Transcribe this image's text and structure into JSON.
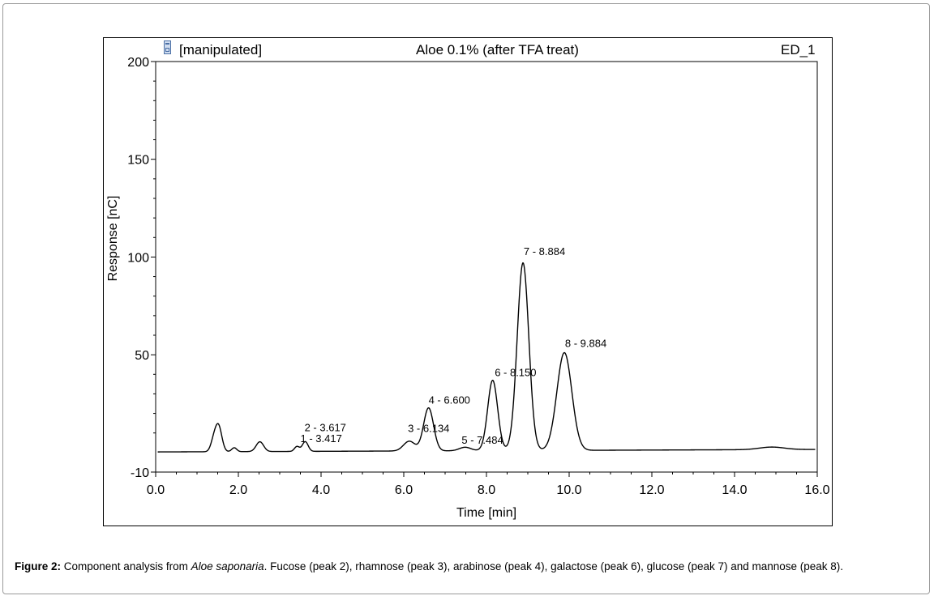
{
  "header": {
    "left_label": "[manipulated]",
    "center_title": "Aloe 0.1% (after TFA treat)",
    "right_label": "ED_1",
    "icon": "document-icon"
  },
  "caption": {
    "figure_label": "Figure 2:",
    "text_before_species": " Component analysis from ",
    "species": "Aloe saponaria",
    "text_after_species": ". Fucose (peak 2), rhamnose (peak 3), arabinose (peak 4), galactose (peak 6), glucose (peak 7) and mannose (peak 8)."
  },
  "chart_data": {
    "type": "line",
    "title": "Aloe 0.1% (after TFA treat)",
    "xlabel": "Time [min]",
    "ylabel": "Response [nC]",
    "xlim": [
      0,
      16
    ],
    "ylim": [
      -10,
      200
    ],
    "x_ticks": [
      "0.0",
      "2.0",
      "4.0",
      "6.0",
      "8.0",
      "10.0",
      "12.0",
      "14.0",
      "16.0"
    ],
    "y_ticks": [
      {
        "value": 200,
        "label": "200"
      },
      {
        "value": 150,
        "label": "150"
      },
      {
        "value": 100,
        "label": "100"
      },
      {
        "value": 50,
        "label": "50"
      },
      {
        "value": -10,
        "label": "-10"
      }
    ],
    "color": "#000000",
    "baseline": 0.3,
    "trace_start": 0.05,
    "trace_end": 15.95,
    "peaks": [
      {
        "rt": 1.4,
        "h": 5,
        "w": 0.07
      },
      {
        "rt": 1.52,
        "h": 13,
        "w": 0.08
      },
      {
        "rt": 1.9,
        "h": 2,
        "w": 0.06
      },
      {
        "rt": 2.52,
        "h": 5,
        "w": 0.09
      },
      {
        "rt": 3.417,
        "h": 2.5,
        "w": 0.06
      },
      {
        "rt": 3.617,
        "h": 5,
        "w": 0.07
      },
      {
        "rt": 6.134,
        "h": 5,
        "w": 0.14
      },
      {
        "rt": 6.6,
        "h": 22,
        "w": 0.12
      },
      {
        "rt": 7.484,
        "h": 1.8,
        "w": 0.14
      },
      {
        "rt": 8.15,
        "h": 36,
        "w": 0.12
      },
      {
        "rt": 8.884,
        "h": 96,
        "w": 0.14
      },
      {
        "rt": 9.884,
        "h": 50,
        "w": 0.18
      },
      {
        "rt": 14.9,
        "h": 1.3,
        "w": 0.3
      }
    ],
    "annotations": [
      {
        "text": "2 - 3.617",
        "x": 3.6,
        "y": 11
      },
      {
        "text": "1 - 3.417",
        "x": 3.5,
        "y": 5.3
      },
      {
        "text": "3 - 6.134",
        "x": 6.1,
        "y": 10.5
      },
      {
        "text": "4 - 6.600",
        "x": 6.6,
        "y": 25
      },
      {
        "text": "5 - 7.484",
        "x": 7.4,
        "y": 4.5
      },
      {
        "text": "6 - 8.150",
        "x": 8.2,
        "y": 39
      },
      {
        "text": "7 - 8.884",
        "x": 8.9,
        "y": 101
      },
      {
        "text": "8 - 9.884",
        "x": 9.9,
        "y": 54
      }
    ]
  }
}
